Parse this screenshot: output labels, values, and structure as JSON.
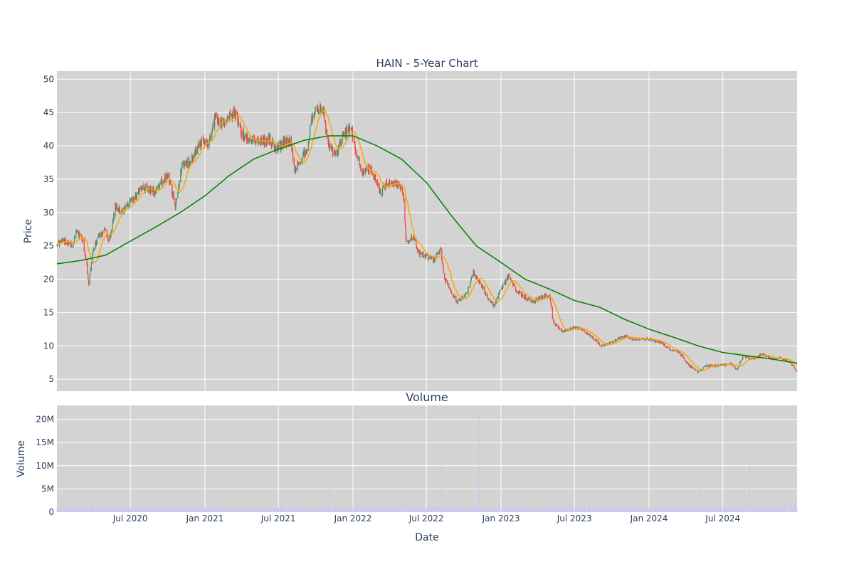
{
  "chart_data": [
    {
      "type": "candlestick",
      "title": "HAIN - 5-Year Chart",
      "ylabel": "Price",
      "ylim": [
        3.2,
        51.2
      ],
      "yticks": [
        5,
        10,
        15,
        20,
        25,
        30,
        35,
        40,
        45,
        50
      ],
      "grid": true,
      "legend": "none",
      "colors": {
        "up": "#3d9970",
        "down": "#ff4136",
        "ma_short": "#ffa500",
        "ma_long": "#008000",
        "plot_bg": "#d3d3d3"
      },
      "close_anchors": [
        [
          "2020-01-02",
          25.2
        ],
        [
          "2020-01-20",
          25.8
        ],
        [
          "2020-02-10",
          25.0
        ],
        [
          "2020-02-20",
          27.2
        ],
        [
          "2020-03-05",
          26.0
        ],
        [
          "2020-03-16",
          22.0
        ],
        [
          "2020-03-20",
          19.0
        ],
        [
          "2020-04-01",
          24.5
        ],
        [
          "2020-04-15",
          26.5
        ],
        [
          "2020-05-01",
          27.5
        ],
        [
          "2020-05-10",
          25.5
        ],
        [
          "2020-05-25",
          31.0
        ],
        [
          "2020-06-10",
          30.0
        ],
        [
          "2020-07-01",
          31.5
        ],
        [
          "2020-08-01",
          33.8
        ],
        [
          "2020-09-01",
          33.0
        ],
        [
          "2020-10-01",
          36.0
        ],
        [
          "2020-10-20",
          31.0
        ],
        [
          "2020-11-05",
          37.0
        ],
        [
          "2020-12-01",
          38.0
        ],
        [
          "2020-12-20",
          40.5
        ],
        [
          "2021-01-10",
          40.5
        ],
        [
          "2021-01-25",
          44.0
        ],
        [
          "2021-02-15",
          43.5
        ],
        [
          "2021-03-15",
          45.0
        ],
        [
          "2021-04-01",
          42.0
        ],
        [
          "2021-04-15",
          41.0
        ],
        [
          "2021-05-15",
          40.5
        ],
        [
          "2021-06-10",
          41.0
        ],
        [
          "2021-06-25",
          39.5
        ],
        [
          "2021-07-15",
          40.5
        ],
        [
          "2021-08-01",
          40.5
        ],
        [
          "2021-08-10",
          36.5
        ],
        [
          "2021-08-25",
          37.5
        ],
        [
          "2021-09-10",
          40.0
        ],
        [
          "2021-09-25",
          45.0
        ],
        [
          "2021-10-20",
          45.5
        ],
        [
          "2021-11-01",
          40.0
        ],
        [
          "2021-11-20",
          38.5
        ],
        [
          "2021-12-10",
          42.0
        ],
        [
          "2021-12-28",
          42.5
        ],
        [
          "2022-01-10",
          38.5
        ],
        [
          "2022-01-25",
          36.0
        ],
        [
          "2022-02-15",
          36.5
        ],
        [
          "2022-03-10",
          33.0
        ],
        [
          "2022-03-25",
          34.5
        ],
        [
          "2022-04-15",
          34.5
        ],
        [
          "2022-05-05",
          33.0
        ],
        [
          "2022-05-12",
          25.5
        ],
        [
          "2022-05-30",
          26.5
        ],
        [
          "2022-06-10",
          24.0
        ],
        [
          "2022-07-01",
          23.5
        ],
        [
          "2022-07-20",
          23.0
        ],
        [
          "2022-08-05",
          24.5
        ],
        [
          "2022-08-15",
          20.0
        ],
        [
          "2022-09-15",
          16.5
        ],
        [
          "2022-10-10",
          18.0
        ],
        [
          "2022-10-25",
          21.0
        ],
        [
          "2022-11-10",
          19.5
        ],
        [
          "2022-12-01",
          17.0
        ],
        [
          "2022-12-15",
          16.0
        ],
        [
          "2023-01-01",
          18.5
        ],
        [
          "2023-01-20",
          20.5
        ],
        [
          "2023-02-05",
          18.5
        ],
        [
          "2023-02-25",
          17.5
        ],
        [
          "2023-03-20",
          16.5
        ],
        [
          "2023-04-15",
          17.5
        ],
        [
          "2023-05-01",
          17.5
        ],
        [
          "2023-05-10",
          13.5
        ],
        [
          "2023-06-01",
          12.2
        ],
        [
          "2023-07-01",
          12.8
        ],
        [
          "2023-07-20",
          12.5
        ],
        [
          "2023-08-10",
          11.5
        ],
        [
          "2023-09-05",
          10.0
        ],
        [
          "2023-10-01",
          10.5
        ],
        [
          "2023-11-01",
          11.5
        ],
        [
          "2023-11-20",
          11.0
        ],
        [
          "2024-01-01",
          11.0
        ],
        [
          "2024-02-01",
          10.5
        ],
        [
          "2024-02-20",
          9.5
        ],
        [
          "2024-03-15",
          9.0
        ],
        [
          "2024-04-10",
          7.0
        ],
        [
          "2024-05-01",
          6.0
        ],
        [
          "2024-05-20",
          7.0
        ],
        [
          "2024-06-20",
          7.0
        ],
        [
          "2024-07-20",
          7.3
        ],
        [
          "2024-08-05",
          6.5
        ],
        [
          "2024-08-20",
          8.5
        ],
        [
          "2024-09-15",
          8.0
        ],
        [
          "2024-10-05",
          8.8
        ],
        [
          "2024-11-01",
          8.0
        ],
        [
          "2024-11-20",
          8.2
        ],
        [
          "2024-12-15",
          7.5
        ],
        [
          "2024-12-31",
          6.2
        ]
      ],
      "ma_long_anchors": [
        [
          "2020-01-02",
          22.3
        ],
        [
          "2020-03-01",
          22.8
        ],
        [
          "2020-05-01",
          23.6
        ],
        [
          "2020-07-01",
          25.7
        ],
        [
          "2020-09-01",
          27.8
        ],
        [
          "2020-11-01",
          30.0
        ],
        [
          "2021-01-01",
          32.5
        ],
        [
          "2021-03-01",
          35.5
        ],
        [
          "2021-05-01",
          38.0
        ],
        [
          "2021-07-01",
          39.5
        ],
        [
          "2021-09-01",
          40.8
        ],
        [
          "2021-11-01",
          41.5
        ],
        [
          "2022-01-01",
          41.5
        ],
        [
          "2022-03-01",
          40.0
        ],
        [
          "2022-05-01",
          38.0
        ],
        [
          "2022-07-01",
          34.5
        ],
        [
          "2022-09-01",
          29.5
        ],
        [
          "2022-11-01",
          25.0
        ],
        [
          "2023-01-01",
          22.5
        ],
        [
          "2023-03-01",
          20.0
        ],
        [
          "2023-05-01",
          18.5
        ],
        [
          "2023-07-01",
          16.8
        ],
        [
          "2023-09-01",
          15.8
        ],
        [
          "2023-11-01",
          14.0
        ],
        [
          "2024-01-01",
          12.5
        ],
        [
          "2024-03-01",
          11.3
        ],
        [
          "2024-05-01",
          10.0
        ],
        [
          "2024-07-01",
          9.0
        ],
        [
          "2024-09-01",
          8.5
        ],
        [
          "2024-11-01",
          8.0
        ],
        [
          "2024-12-31",
          7.4
        ]
      ]
    },
    {
      "type": "bar",
      "title": "Volume",
      "xlabel": "Date",
      "ylabel": "Volume",
      "ylim": [
        0,
        23000000
      ],
      "yticks": [
        0,
        5000000,
        10000000,
        15000000,
        20000000
      ],
      "ytick_labels": [
        "0",
        "5M",
        "10M",
        "15M",
        "20M"
      ],
      "bar_color": "#c7c9ee",
      "baseline_volume": 700000,
      "volume_spikes": [
        [
          "2020-01-25",
          2000000
        ],
        [
          "2020-03-10",
          2300000
        ],
        [
          "2020-03-18",
          2500000
        ],
        [
          "2020-05-18",
          2800000
        ],
        [
          "2020-06-25",
          3000000
        ],
        [
          "2020-09-01",
          2800000
        ],
        [
          "2020-11-12",
          1800000
        ],
        [
          "2021-01-05",
          2200000
        ],
        [
          "2021-02-05",
          3000000
        ],
        [
          "2021-09-20",
          1600000
        ],
        [
          "2021-11-05",
          6000000
        ],
        [
          "2022-02-03",
          5000000
        ],
        [
          "2022-05-05",
          2600000
        ],
        [
          "2022-05-12",
          2200000
        ],
        [
          "2022-08-08",
          12000000
        ],
        [
          "2022-11-08",
          22000000
        ],
        [
          "2022-11-09",
          5000000
        ],
        [
          "2023-02-08",
          3000000
        ],
        [
          "2023-05-05",
          3000000
        ],
        [
          "2023-08-08",
          2500000
        ],
        [
          "2023-11-08",
          3000000
        ],
        [
          "2024-02-08",
          2600000
        ],
        [
          "2024-05-08",
          5700000
        ],
        [
          "2024-05-20",
          3000000
        ],
        [
          "2024-08-08",
          2000000
        ],
        [
          "2024-08-26",
          2500000
        ],
        [
          "2024-09-05",
          11500000
        ],
        [
          "2024-11-08",
          3200000
        ]
      ]
    }
  ],
  "x_axis": {
    "start": "2020-01-02",
    "end": "2024-12-31",
    "ticks": [
      {
        "date": "2020-07-01",
        "label": "Jul 2020"
      },
      {
        "date": "2021-01-01",
        "label": "Jan 2021"
      },
      {
        "date": "2021-07-01",
        "label": "Jul 2021"
      },
      {
        "date": "2022-01-01",
        "label": "Jan 2022"
      },
      {
        "date": "2022-07-01",
        "label": "Jul 2022"
      },
      {
        "date": "2023-01-01",
        "label": "Jan 2023"
      },
      {
        "date": "2023-07-01",
        "label": "Jul 2023"
      },
      {
        "date": "2024-01-01",
        "label": "Jan 2024"
      },
      {
        "date": "2024-07-01",
        "label": "Jul 2024"
      }
    ]
  }
}
